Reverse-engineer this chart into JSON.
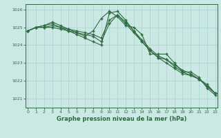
{
  "background_color": "#cce8e4",
  "grid_color": "#a8d4ce",
  "line_color": "#2d6a3f",
  "xlabel": "Graphe pression niveau de la mer (hPa)",
  "xlabel_color": "#2d6a3f",
  "tick_color": "#2d6a3f",
  "ylim": [
    1020.5,
    1026.3
  ],
  "yticks": [
    1021,
    1022,
    1023,
    1024,
    1025,
    1026
  ],
  "xlim": [
    -0.3,
    23.3
  ],
  "xticks": [
    0,
    1,
    2,
    3,
    4,
    5,
    6,
    7,
    8,
    9,
    10,
    11,
    12,
    13,
    14,
    15,
    16,
    17,
    18,
    19,
    20,
    21,
    22,
    23
  ],
  "series": [
    [
      1024.8,
      1025.0,
      1025.1,
      1025.3,
      1025.1,
      1024.9,
      1024.7,
      1024.5,
      1024.8,
      1025.5,
      1025.9,
      1025.6,
      1025.1,
      1025.0,
      1024.6,
      1023.5,
      1023.5,
      1023.5,
      1023.0,
      1022.5,
      1022.5,
      1022.2,
      1021.6,
      1021.2
    ],
    [
      1024.8,
      1025.0,
      1025.0,
      1025.1,
      1025.0,
      1024.9,
      1024.8,
      1024.7,
      1024.6,
      1024.4,
      1025.4,
      1025.7,
      1025.2,
      1024.7,
      1024.2,
      1023.7,
      1023.3,
      1023.2,
      1022.8,
      1022.5,
      1022.3,
      1022.1,
      1021.7,
      1021.3
    ],
    [
      1024.8,
      1025.0,
      1025.0,
      1025.0,
      1024.9,
      1024.8,
      1024.7,
      1024.6,
      1024.5,
      1024.2,
      1025.2,
      1025.7,
      1025.3,
      1024.8,
      1024.3,
      1023.8,
      1023.4,
      1023.2,
      1022.9,
      1022.6,
      1022.4,
      1022.1,
      1021.7,
      1021.3
    ],
    [
      1024.8,
      1025.0,
      1025.1,
      1025.2,
      1025.0,
      1024.8,
      1024.6,
      1024.4,
      1024.2,
      1024.0,
      1025.8,
      1025.9,
      1025.4,
      1024.8,
      1024.2,
      1023.7,
      1023.3,
      1023.0,
      1022.7,
      1022.4,
      1022.3,
      1022.1,
      1021.8,
      1021.3
    ]
  ]
}
